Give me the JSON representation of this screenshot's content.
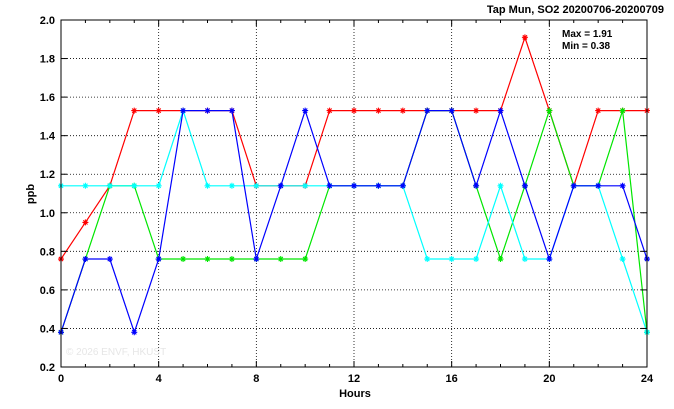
{
  "chart_data": {
    "type": "line",
    "title": "Tap Mun, SO2 20200706-20200709",
    "xlabel": "Hours",
    "ylabel": "ppb",
    "xlim": [
      0,
      24
    ],
    "ylim": [
      0.2,
      2.0
    ],
    "xticks": [
      0,
      4,
      8,
      12,
      16,
      20,
      24
    ],
    "yticks": [
      0.2,
      0.4,
      0.6,
      0.8,
      1.0,
      1.2,
      1.4,
      1.6,
      1.8,
      2.0
    ],
    "ytick_labels": [
      "0.2",
      "0.4",
      "0.6",
      "0.8",
      "1.0",
      "1.2",
      "1.4",
      "1.6",
      "1.8",
      "2.0"
    ],
    "grid": true,
    "max_label": "Max = 1.91",
    "min_label": "Min = 0.38",
    "watermark": "© 2026  ENVF, HKUST",
    "x": [
      0,
      1,
      2,
      3,
      4,
      5,
      6,
      7,
      8,
      9,
      10,
      11,
      12,
      13,
      14,
      15,
      16,
      17,
      18,
      19,
      20,
      21,
      22,
      23,
      24
    ],
    "series": [
      {
        "color": "#ff0000",
        "values": [
          0.76,
          0.95,
          1.14,
          1.53,
          1.53,
          1.53,
          1.53,
          1.53,
          1.14,
          1.14,
          1.14,
          1.53,
          1.53,
          1.53,
          1.53,
          1.53,
          1.53,
          1.53,
          1.53,
          1.91,
          1.53,
          1.14,
          1.53,
          1.53,
          1.53
        ]
      },
      {
        "color": "#00e600",
        "values": [
          0.38,
          0.76,
          1.14,
          1.14,
          0.76,
          0.76,
          0.76,
          0.76,
          0.76,
          0.76,
          0.76,
          1.14,
          1.14,
          1.14,
          1.14,
          1.53,
          1.53,
          1.14,
          0.76,
          1.14,
          1.53,
          1.14,
          1.14,
          1.53,
          0.38
        ]
      },
      {
        "color": "#00ffff",
        "values": [
          1.14,
          1.14,
          1.14,
          1.14,
          1.14,
          1.53,
          1.14,
          1.14,
          1.14,
          1.14,
          1.14,
          1.14,
          1.14,
          1.14,
          1.14,
          0.76,
          0.76,
          0.76,
          1.14,
          0.76,
          0.76,
          1.14,
          1.14,
          0.76,
          0.38
        ]
      },
      {
        "color": "#0000ff",
        "values": [
          0.38,
          0.76,
          0.76,
          0.38,
          0.76,
          1.53,
          1.53,
          1.53,
          0.76,
          1.14,
          1.53,
          1.14,
          1.14,
          1.14,
          1.14,
          1.53,
          1.53,
          1.14,
          1.53,
          1.14,
          0.76,
          1.14,
          1.14,
          1.14,
          0.76
        ]
      }
    ]
  }
}
